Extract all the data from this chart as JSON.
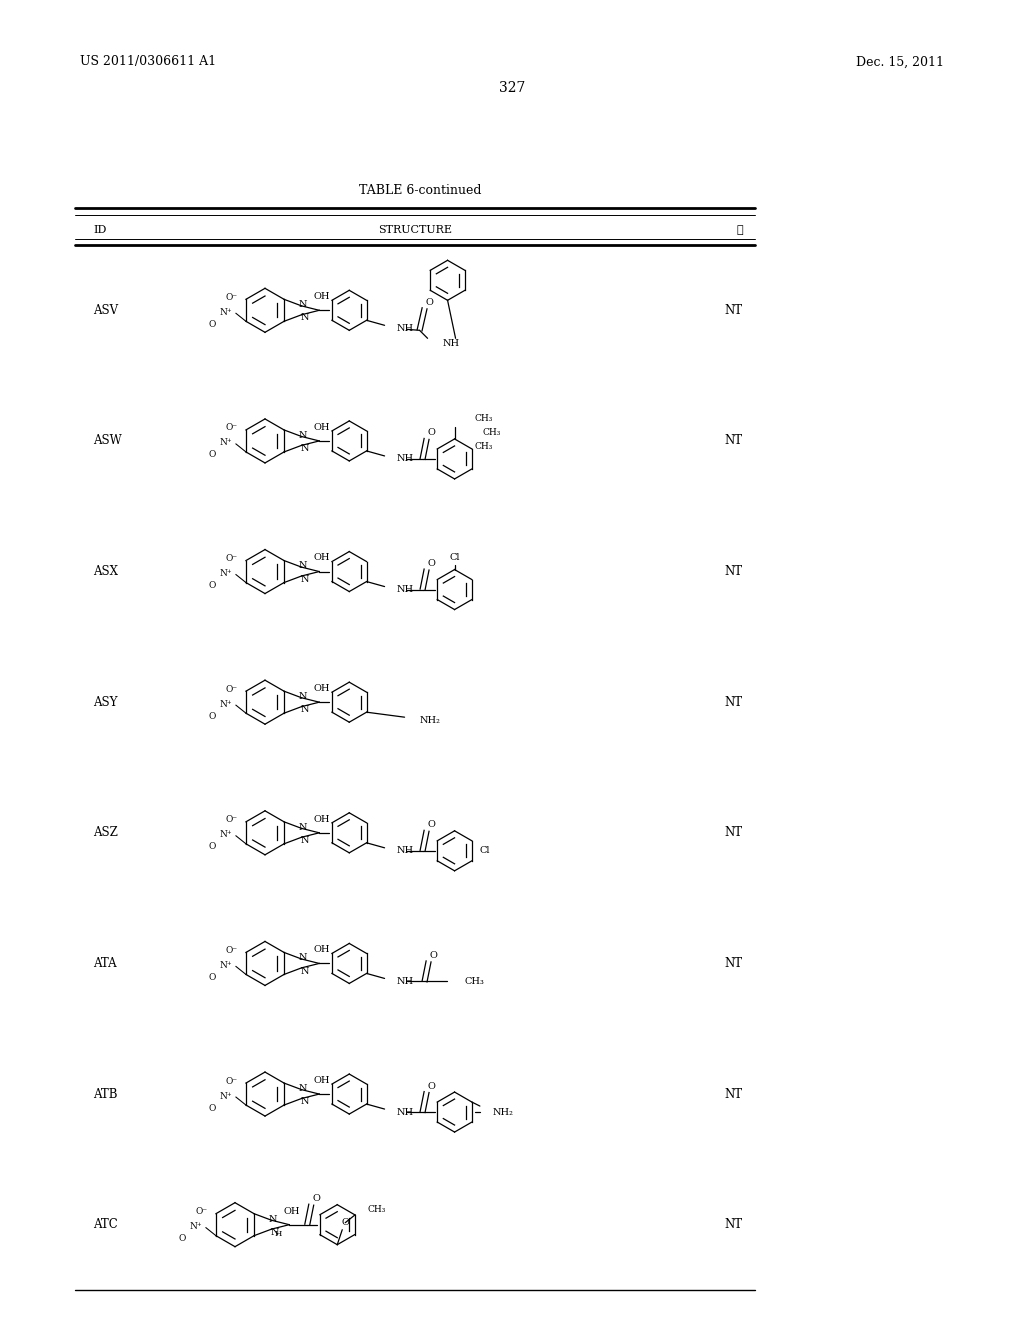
{
  "page_header_left": "US 2011/0306611 A1",
  "page_header_right": "Dec. 15, 2011",
  "page_number": "327",
  "table_title": "TABLE 6-continued",
  "col_id": "ID",
  "col_struct": "STRUCTURE",
  "col_val": "Ⓣ",
  "background": "#ffffff",
  "rows": [
    {
      "id": "ASV",
      "val": "NT"
    },
    {
      "id": "ASW",
      "val": "NT"
    },
    {
      "id": "ASX",
      "val": "NT"
    },
    {
      "id": "ASY",
      "val": "NT"
    },
    {
      "id": "ASZ",
      "val": "NT"
    },
    {
      "id": "ATA",
      "val": "NT"
    },
    {
      "id": "ATB",
      "val": "NT"
    },
    {
      "id": "ATC",
      "val": "NT"
    }
  ]
}
